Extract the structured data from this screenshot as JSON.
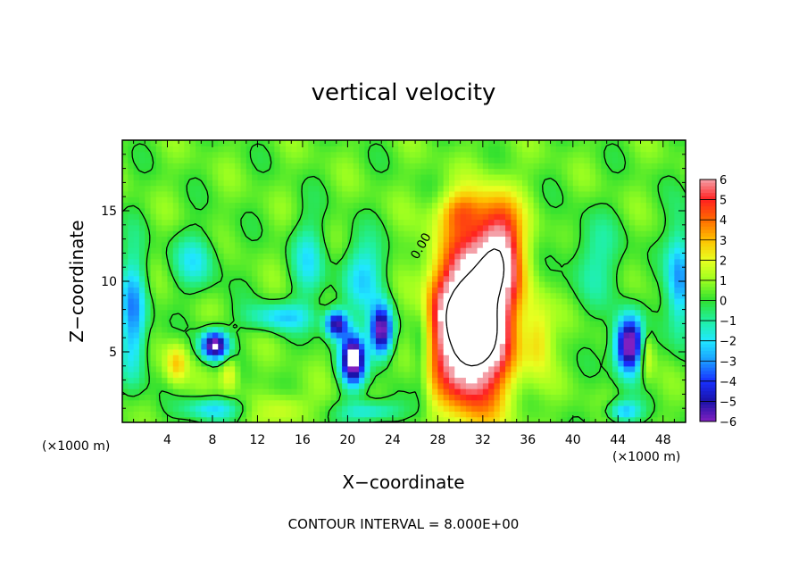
{
  "chart_data": {
    "type": "heatmap",
    "title": "vertical velocity",
    "xlabel": "X−coordinate",
    "ylabel": "Z−coordinate",
    "x_unit_left": "(×1000 m)",
    "x_unit_right": "(×1000 m)",
    "x_ticks": [
      "4",
      "8",
      "12",
      "16",
      "20",
      "24",
      "28",
      "32",
      "36",
      "40",
      "44",
      "48"
    ],
    "x_tick_values": [
      4,
      8,
      12,
      16,
      20,
      24,
      28,
      32,
      36,
      40,
      44,
      48
    ],
    "y_ticks": [
      "5",
      "10",
      "15"
    ],
    "y_tick_values": [
      5,
      10,
      15
    ],
    "xlim": [
      0,
      50
    ],
    "ylim": [
      0,
      20
    ],
    "colorbar": {
      "ticks": [
        "6",
        "5",
        "4",
        "3",
        "2",
        "1",
        "0",
        "−1",
        "−2",
        "−3",
        "−4",
        "−5",
        "−6"
      ],
      "values": [
        6,
        5,
        4,
        3,
        2,
        1,
        0,
        -1,
        -2,
        -3,
        -4,
        -5,
        -6
      ],
      "range": [
        -6,
        6
      ],
      "placement": "right"
    },
    "contour_label": "0.00",
    "footnote": "CONTOUR INTERVAL = 8.000E+00",
    "features": [
      {
        "x": 31,
        "z": 7,
        "sx": 3.4,
        "sz": 5.5,
        "amp": 11
      },
      {
        "x": 33.5,
        "z": 12.5,
        "sx": 2.0,
        "sz": 3.5,
        "amp": 5
      },
      {
        "x": 30,
        "z": 15,
        "sx": 2.0,
        "sz": 1.5,
        "amp": 2.5
      },
      {
        "x": 37,
        "z": 6,
        "sx": 1.2,
        "sz": 2.5,
        "amp": 2
      },
      {
        "x": 4.8,
        "z": 4.2,
        "sx": 1.0,
        "sz": 1.5,
        "amp": 2.5
      },
      {
        "x": 9.5,
        "z": 3.5,
        "sx": 0.8,
        "sz": 1.3,
        "amp": 2
      },
      {
        "x": 14.5,
        "z": 1.0,
        "sx": 2.0,
        "sz": 1.2,
        "amp": 1.5
      },
      {
        "x": 46.5,
        "z": 5.0,
        "sx": 0.7,
        "sz": 1.8,
        "amp": 2.5
      },
      {
        "x": 8.2,
        "z": 5.5,
        "sx": 1.2,
        "sz": 1.0,
        "amp": -7
      },
      {
        "x": 20.5,
        "z": 4.5,
        "sx": 1.1,
        "sz": 1.8,
        "amp": -7.5
      },
      {
        "x": 23,
        "z": 6.5,
        "sx": 1.0,
        "sz": 1.8,
        "amp": -7
      },
      {
        "x": 45,
        "z": 5.5,
        "sx": 1.3,
        "sz": 2.0,
        "amp": -7.5
      },
      {
        "x": 19,
        "z": 7.0,
        "sx": 1.0,
        "sz": 1.0,
        "amp": -6
      },
      {
        "x": 1,
        "z": 7.5,
        "sx": 1.2,
        "sz": 4.5,
        "amp": -3.5
      },
      {
        "x": 49.5,
        "z": 10.0,
        "sx": 1.2,
        "sz": 4.0,
        "amp": -3.5
      },
      {
        "x": 6.5,
        "z": 11.5,
        "sx": 2.0,
        "sz": 2.0,
        "amp": -2.0
      },
      {
        "x": 16.5,
        "z": 11.5,
        "sx": 1.5,
        "sz": 3.0,
        "amp": -2.0
      },
      {
        "x": 21.5,
        "z": 10.5,
        "sx": 2.0,
        "sz": 2.5,
        "amp": -2.5
      },
      {
        "x": 14,
        "z": 7.5,
        "sx": 3.0,
        "sz": 1.0,
        "amp": -2.5
      },
      {
        "x": 42,
        "z": 11.5,
        "sx": 2.5,
        "sz": 3.0,
        "amp": -1.5
      },
      {
        "x": 44.5,
        "z": 0.8,
        "sx": 1.5,
        "sz": 0.8,
        "amp": -3
      },
      {
        "x": 8,
        "z": 1.0,
        "sx": 2.5,
        "sz": 0.8,
        "amp": -2.5
      },
      {
        "x": 22,
        "z": 0.8,
        "sx": 2.5,
        "sz": 0.8,
        "amp": -2.5
      },
      {
        "x": 26.5,
        "z": 5.0,
        "sx": 0.8,
        "sz": 4.0,
        "amp": -1.5
      }
    ]
  }
}
